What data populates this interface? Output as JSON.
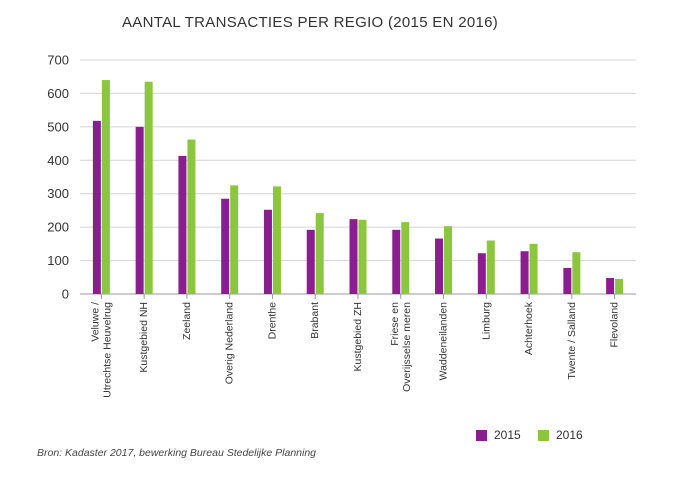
{
  "chart_data": {
    "type": "bar",
    "title": "AANTAL TRANSACTIES PER REGIO (2015 EN 2016)",
    "categories": [
      [
        "Veluwe /",
        "Utrechtse Heuvelrug"
      ],
      [
        "Kustgebied NH"
      ],
      [
        "Zeeland"
      ],
      [
        "Overig Nederland"
      ],
      [
        "Drenthe"
      ],
      [
        "Brabant"
      ],
      [
        "Kustgebied ZH"
      ],
      [
        "Friese en",
        "Overijsselse meren"
      ],
      [
        "Waddeneilanden"
      ],
      [
        "Limburg"
      ],
      [
        "Achterhoek"
      ],
      [
        "Twente / Salland"
      ],
      [
        "Flevoland"
      ]
    ],
    "series": [
      {
        "name": "2015",
        "color": "#8b1e8f",
        "values": [
          518,
          500,
          413,
          285,
          252,
          192,
          224,
          192,
          166,
          122,
          128,
          78,
          48
        ]
      },
      {
        "name": "2016",
        "color": "#8cc63f",
        "values": [
          640,
          635,
          462,
          325,
          322,
          242,
          222,
          215,
          203,
          160,
          150,
          125,
          45
        ]
      }
    ],
    "ylim": [
      0,
      700
    ],
    "yticks": [
      0,
      100,
      200,
      300,
      400,
      500,
      600,
      700
    ],
    "grid": true,
    "legend_position": "bottom-right",
    "source": "Bron: Kadaster 2017, bewerking Bureau Stedelijke Planning"
  }
}
